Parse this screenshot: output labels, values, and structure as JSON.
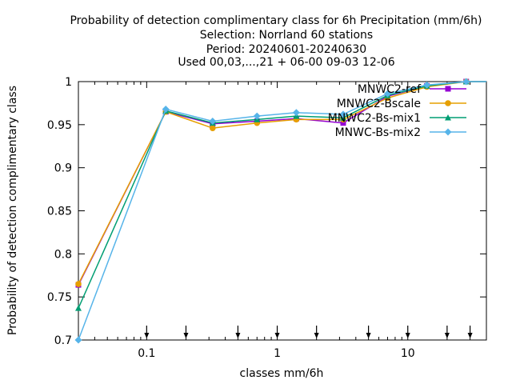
{
  "chart_data": {
    "type": "line",
    "title_lines": [
      "Probability of detection complimentary class  for 6h Precipitation (mm/6h)",
      "Selection: Norrland     60 stations",
      "Period: 20240601-20240630",
      "Used 00,03,...,21 + 06-00 09-03 12-06"
    ],
    "xlabel": "classes mm/6h",
    "ylabel": "Probability of detection complimentary class",
    "xscale": "log",
    "xlim": [
      0.03,
      40
    ],
    "ylim": [
      0.7,
      1.0
    ],
    "x_ticks": [
      0.1,
      1,
      10
    ],
    "x_tick_labels": [
      "0.1",
      "1",
      "10"
    ],
    "y_ticks": [
      0.7,
      0.75,
      0.8,
      0.85,
      0.9,
      0.95,
      1.0
    ],
    "y_tick_labels": [
      "0.7",
      "0.75",
      "0.8",
      "0.85",
      "0.9",
      "0.95",
      "1"
    ],
    "threshold_arrows": [
      0.1,
      0.2,
      0.5,
      1,
      2,
      5,
      10,
      20,
      30
    ],
    "legend_position": "top-right",
    "x": [
      0.03,
      0.14,
      0.32,
      0.7,
      1.4,
      3.2,
      7,
      14,
      28,
      40
    ],
    "series": [
      {
        "name": "MNWC2-ref",
        "color": "#9400d3",
        "marker": "square",
        "values": [
          0.764,
          0.965,
          0.951,
          0.954,
          0.957,
          0.952,
          0.983,
          0.995,
          1.0,
          1.0
        ]
      },
      {
        "name": "MNWC2-Bscale",
        "color": "#e69f00",
        "marker": "circle",
        "values": [
          0.765,
          0.965,
          0.946,
          0.952,
          0.956,
          0.956,
          0.981,
          0.994,
          1.0,
          1.0
        ]
      },
      {
        "name": "MNWC2-Bs-mix1",
        "color": "#009e73",
        "marker": "triangle",
        "values": [
          0.737,
          0.966,
          0.952,
          0.956,
          0.96,
          0.958,
          0.984,
          0.995,
          1.0,
          1.0
        ]
      },
      {
        "name": "MNWC-Bs-mix2",
        "color": "#56b4e9",
        "marker": "diamond",
        "values": [
          0.7,
          0.968,
          0.954,
          0.96,
          0.964,
          0.962,
          0.986,
          0.996,
          1.0,
          1.0
        ]
      }
    ]
  }
}
